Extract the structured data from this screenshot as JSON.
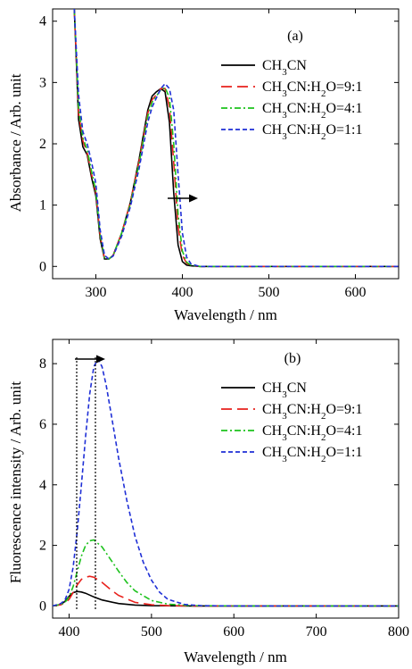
{
  "chart_data": [
    {
      "type": "line",
      "panel_label": "(a)",
      "xlabel": "Wavelength / nm",
      "ylabel": "Absorbance / Arb. unit",
      "xlim": [
        250,
        650
      ],
      "ylim": [
        -0.2,
        4.2
      ],
      "xticks": [
        300,
        400,
        500,
        600
      ],
      "yticks": [
        0,
        1,
        2,
        3,
        4
      ],
      "grid": false,
      "legend_position": "top-right",
      "annotation": "rightward arrow near 400 nm at absorbance ~1.1 indicating red shift",
      "series": [
        {
          "name": "CH3CN",
          "color": "#000000",
          "dash": "solid",
          "x": [
            275,
            280,
            285,
            290,
            295,
            300,
            305,
            310,
            315,
            320,
            330,
            340,
            350,
            360,
            365,
            370,
            375,
            380,
            385,
            390,
            395,
            400,
            405,
            410,
            420,
            450,
            500,
            550,
            600,
            650
          ],
          "y": [
            4.2,
            2.4,
            1.95,
            1.82,
            1.45,
            1.15,
            0.45,
            0.12,
            0.12,
            0.18,
            0.55,
            1.05,
            1.75,
            2.55,
            2.78,
            2.85,
            2.9,
            2.85,
            2.35,
            1.2,
            0.35,
            0.08,
            0.02,
            0.01,
            0.0,
            0.0,
            0.0,
            0.0,
            0.0,
            0.0
          ]
        },
        {
          "name": "CH3CN:H2O=9:1",
          "color": "#e8211c",
          "dash": "long",
          "x": [
            275,
            280,
            285,
            290,
            295,
            300,
            305,
            310,
            315,
            320,
            330,
            340,
            350,
            360,
            365,
            370,
            375,
            380,
            385,
            390,
            395,
            400,
            405,
            410,
            420,
            450,
            500,
            550,
            600,
            650
          ],
          "y": [
            4.2,
            2.5,
            2.05,
            1.85,
            1.5,
            1.2,
            0.5,
            0.13,
            0.12,
            0.18,
            0.55,
            1.05,
            1.72,
            2.5,
            2.72,
            2.8,
            2.9,
            2.9,
            2.6,
            1.7,
            0.65,
            0.18,
            0.05,
            0.02,
            0.0,
            0.0,
            0.0,
            0.0,
            0.0,
            0.0
          ]
        },
        {
          "name": "CH3CN:H2O=4:1",
          "color": "#1dc21d",
          "dash": "dashdot",
          "x": [
            275,
            280,
            285,
            290,
            295,
            300,
            305,
            310,
            315,
            320,
            330,
            340,
            350,
            360,
            365,
            370,
            375,
            380,
            385,
            390,
            395,
            400,
            405,
            410,
            420,
            450,
            500,
            550,
            600,
            650
          ],
          "y": [
            4.2,
            2.6,
            2.1,
            1.9,
            1.55,
            1.22,
            0.52,
            0.14,
            0.12,
            0.18,
            0.55,
            1.02,
            1.68,
            2.45,
            2.68,
            2.78,
            2.88,
            2.92,
            2.75,
            2.0,
            0.85,
            0.25,
            0.07,
            0.02,
            0.0,
            0.0,
            0.0,
            0.0,
            0.0,
            0.0
          ]
        },
        {
          "name": "CH3CN:H2O=1:1",
          "color": "#1f2fd6",
          "dash": "short",
          "x": [
            275,
            280,
            285,
            290,
            295,
            300,
            305,
            310,
            315,
            320,
            330,
            340,
            350,
            360,
            365,
            370,
            375,
            380,
            385,
            390,
            395,
            400,
            405,
            410,
            420,
            450,
            500,
            550,
            600,
            650
          ],
          "y": [
            4.2,
            2.8,
            2.2,
            2.0,
            1.7,
            1.35,
            0.6,
            0.18,
            0.12,
            0.17,
            0.5,
            0.98,
            1.6,
            2.35,
            2.6,
            2.75,
            2.9,
            2.98,
            2.9,
            2.55,
            1.5,
            0.55,
            0.15,
            0.04,
            0.0,
            0.0,
            0.0,
            0.0,
            0.0,
            0.0
          ]
        }
      ]
    },
    {
      "type": "line",
      "panel_label": "(b)",
      "xlabel": "Wavelength / nm",
      "ylabel": "Fluorescence intensity / Arb. unit",
      "xlim": [
        380,
        800
      ],
      "ylim": [
        -0.4,
        8.8
      ],
      "xticks": [
        400,
        500,
        600,
        700,
        800
      ],
      "yticks": [
        0,
        2,
        4,
        6,
        8
      ],
      "grid": false,
      "legend_position": "top-right",
      "annotation": "two vertical dotted lines at ~410 nm and ~433 nm with rightward arrow between them at top",
      "series": [
        {
          "name": "CH3CN",
          "color": "#000000",
          "dash": "solid",
          "x": [
            380,
            390,
            395,
            400,
            405,
            410,
            415,
            420,
            430,
            440,
            460,
            480,
            500,
            550,
            600,
            700,
            800
          ],
          "y": [
            0.0,
            0.05,
            0.15,
            0.32,
            0.44,
            0.48,
            0.46,
            0.42,
            0.3,
            0.2,
            0.08,
            0.03,
            0.01,
            0.0,
            0.0,
            0.0,
            0.0
          ]
        },
        {
          "name": "CH3CN:H2O=9:1",
          "color": "#e8211c",
          "dash": "long",
          "x": [
            380,
            390,
            395,
            400,
            405,
            410,
            415,
            420,
            425,
            430,
            440,
            450,
            460,
            480,
            500,
            520,
            550,
            600,
            700,
            800
          ],
          "y": [
            0.0,
            0.04,
            0.1,
            0.22,
            0.45,
            0.7,
            0.88,
            0.95,
            0.98,
            0.95,
            0.78,
            0.55,
            0.35,
            0.12,
            0.04,
            0.01,
            0.0,
            0.0,
            0.0,
            0.0
          ]
        },
        {
          "name": "CH3CN:H2O=4:1",
          "color": "#1dc21d",
          "dash": "dashdot",
          "x": [
            380,
            390,
            395,
            400,
            405,
            410,
            415,
            420,
            425,
            430,
            440,
            450,
            460,
            470,
            480,
            500,
            520,
            550,
            600,
            700,
            800
          ],
          "y": [
            0.0,
            0.05,
            0.12,
            0.3,
            0.65,
            1.15,
            1.65,
            2.0,
            2.15,
            2.18,
            1.95,
            1.55,
            1.15,
            0.78,
            0.5,
            0.18,
            0.06,
            0.01,
            0.0,
            0.0,
            0.0
          ]
        },
        {
          "name": "CH3CN:H2O=1:1",
          "color": "#1f2fd6",
          "dash": "short",
          "x": [
            380,
            390,
            395,
            400,
            405,
            410,
            415,
            420,
            425,
            430,
            435,
            440,
            445,
            450,
            460,
            470,
            480,
            490,
            500,
            510,
            520,
            540,
            560,
            600,
            700,
            800
          ],
          "y": [
            0.0,
            0.08,
            0.2,
            0.55,
            1.3,
            2.5,
            4.0,
            5.6,
            7.0,
            7.9,
            8.15,
            7.9,
            7.3,
            6.5,
            4.9,
            3.5,
            2.3,
            1.45,
            0.85,
            0.45,
            0.22,
            0.05,
            0.01,
            0.0,
            0.0,
            0.0
          ]
        }
      ]
    }
  ]
}
